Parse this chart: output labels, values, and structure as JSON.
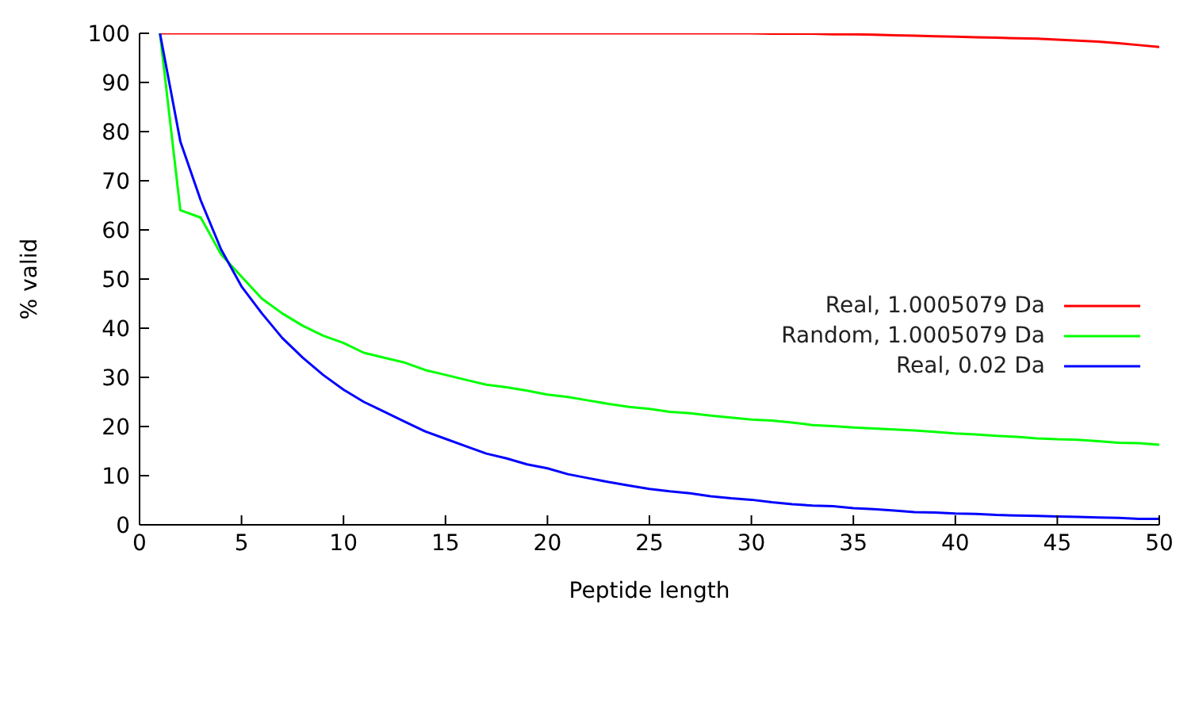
{
  "chart_data": {
    "type": "line",
    "xlabel": "Peptide length",
    "ylabel": "% valid",
    "x": [
      1,
      2,
      3,
      4,
      5,
      6,
      7,
      8,
      9,
      10,
      11,
      12,
      13,
      14,
      15,
      16,
      17,
      18,
      19,
      20,
      21,
      22,
      23,
      24,
      25,
      26,
      27,
      28,
      29,
      30,
      31,
      32,
      33,
      34,
      35,
      36,
      37,
      38,
      39,
      40,
      41,
      42,
      43,
      44,
      45,
      46,
      47,
      48,
      49,
      50
    ],
    "series": [
      {
        "name": "Real, 1.0005079 Da",
        "color": "#ff0000",
        "values": [
          100,
          100,
          100,
          100,
          100,
          100,
          100,
          100,
          100,
          100,
          100,
          100,
          100,
          100,
          100,
          100,
          100,
          100,
          100,
          100,
          100,
          100,
          100,
          100,
          100,
          100,
          100,
          100,
          100,
          100,
          99.9,
          99.9,
          99.9,
          99.8,
          99.8,
          99.7,
          99.6,
          99.5,
          99.4,
          99.3,
          99.2,
          99.1,
          99,
          98.9,
          98.7,
          98.5,
          98.3,
          98,
          97.6,
          97.2
        ]
      },
      {
        "name": "Random, 1.0005079 Da",
        "color": "#00ff00",
        "values": [
          100,
          64,
          62.5,
          55,
          50.5,
          46,
          43,
          40.5,
          38.5,
          37,
          35,
          34,
          33,
          31.5,
          30.5,
          29.5,
          28.5,
          28,
          27.3,
          26.5,
          26,
          25.3,
          24.6,
          24,
          23.6,
          23,
          22.7,
          22.2,
          21.8,
          21.4,
          21.2,
          20.8,
          20.3,
          20.1,
          19.8,
          19.6,
          19.4,
          19.2,
          18.9,
          18.6,
          18.4,
          18.1,
          17.9,
          17.6,
          17.4,
          17.3,
          17,
          16.7,
          16.6,
          16.3
        ]
      },
      {
        "name": "Real, 0.02 Da",
        "color": "#0000ff",
        "values": [
          100,
          78,
          66,
          56,
          48.5,
          43,
          38,
          34,
          30.5,
          27.5,
          25,
          23,
          21,
          19,
          17.5,
          16,
          14.5,
          13.5,
          12.3,
          11.5,
          10.3,
          9.5,
          8.7,
          8,
          7.3,
          6.8,
          6.4,
          5.8,
          5.4,
          5.1,
          4.6,
          4.2,
          3.9,
          3.8,
          3.4,
          3.2,
          2.9,
          2.6,
          2.5,
          2.3,
          2.2,
          2,
          1.9,
          1.8,
          1.7,
          1.6,
          1.5,
          1.4,
          1.2,
          1.2
        ]
      }
    ],
    "xlim": [
      0,
      50
    ],
    "xticks": [
      0,
      5,
      10,
      15,
      20,
      25,
      30,
      35,
      40,
      45,
      50
    ],
    "ylim": [
      0,
      100
    ],
    "yticks": [
      0,
      10,
      20,
      30,
      40,
      50,
      60,
      70,
      80,
      90,
      100
    ],
    "grid": false,
    "legend": "right",
    "marker": "none",
    "line_style": "solid"
  }
}
